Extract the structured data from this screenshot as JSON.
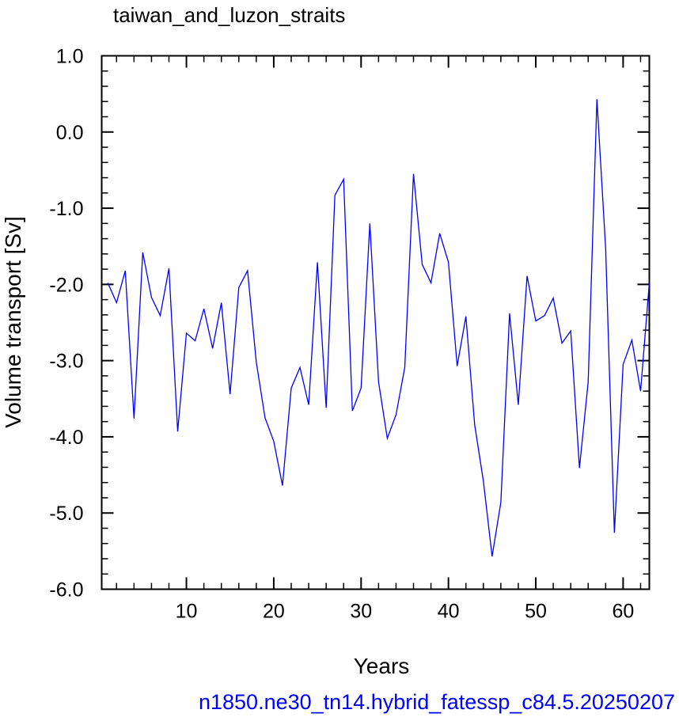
{
  "chart_data": {
    "type": "line",
    "title": "taiwan_and_luzon_straits",
    "xlabel": "Years",
    "ylabel": "Volume transport [Sv]",
    "caption": "n1850.ne30_tn14.hybrid_fatessp_c84.5.20250207",
    "xlim": [
      0.3,
      63
    ],
    "ylim": [
      -6,
      1
    ],
    "x_ticks": [
      10,
      20,
      30,
      40,
      50,
      60
    ],
    "x_tick_labels": [
      "10",
      "20",
      "30",
      "40",
      "50",
      "60"
    ],
    "y_ticks": [
      1,
      0,
      -1,
      -2,
      -3,
      -4,
      -5,
      -6
    ],
    "y_tick_labels": [
      "1.0",
      "0.0",
      "-1.0",
      "-2.0",
      "-3.0",
      "-4.0",
      "-5.0",
      "-6.0"
    ],
    "grid": false,
    "colors": {
      "line": "#0000ff",
      "caption": "#0000ff",
      "axis": "#000000"
    },
    "series": [
      {
        "x": [
          1,
          2,
          3,
          4,
          5,
          6,
          7,
          8,
          9,
          10,
          11,
          12,
          13,
          14,
          15,
          16,
          17,
          18,
          19,
          20,
          21,
          22,
          23,
          24,
          25,
          26,
          27,
          28,
          29,
          30,
          31,
          32,
          33,
          34,
          35,
          36,
          37,
          38,
          39,
          40,
          41,
          42,
          43,
          44,
          45,
          46,
          47,
          48,
          49,
          50,
          51,
          52,
          53,
          54,
          55,
          56,
          57,
          58,
          59,
          60,
          61,
          62,
          63
        ],
        "values": [
          -1.98,
          -2.24,
          -1.82,
          -3.76,
          -1.58,
          -2.17,
          -2.41,
          -1.79,
          -3.93,
          -2.64,
          -2.74,
          -2.32,
          -2.84,
          -2.24,
          -3.44,
          -2.04,
          -1.82,
          -3.02,
          -3.75,
          -4.06,
          -4.64,
          -3.36,
          -3.09,
          -3.58,
          -1.71,
          -3.62,
          -0.83,
          -0.62,
          -3.66,
          -3.36,
          -1.2,
          -3.28,
          -4.02,
          -3.71,
          -3.09,
          -0.55,
          -1.74,
          -1.98,
          -1.33,
          -1.71,
          -3.07,
          -2.42,
          -3.84,
          -4.58,
          -5.57,
          -4.86,
          -2.38,
          -3.58,
          -1.89,
          -2.48,
          -2.41,
          -2.18,
          -2.77,
          -2.61,
          -4.41,
          -3.28,
          0.43,
          -1.53,
          -5.26,
          -3.05,
          -2.73,
          -3.4,
          -1.98
        ]
      }
    ]
  }
}
